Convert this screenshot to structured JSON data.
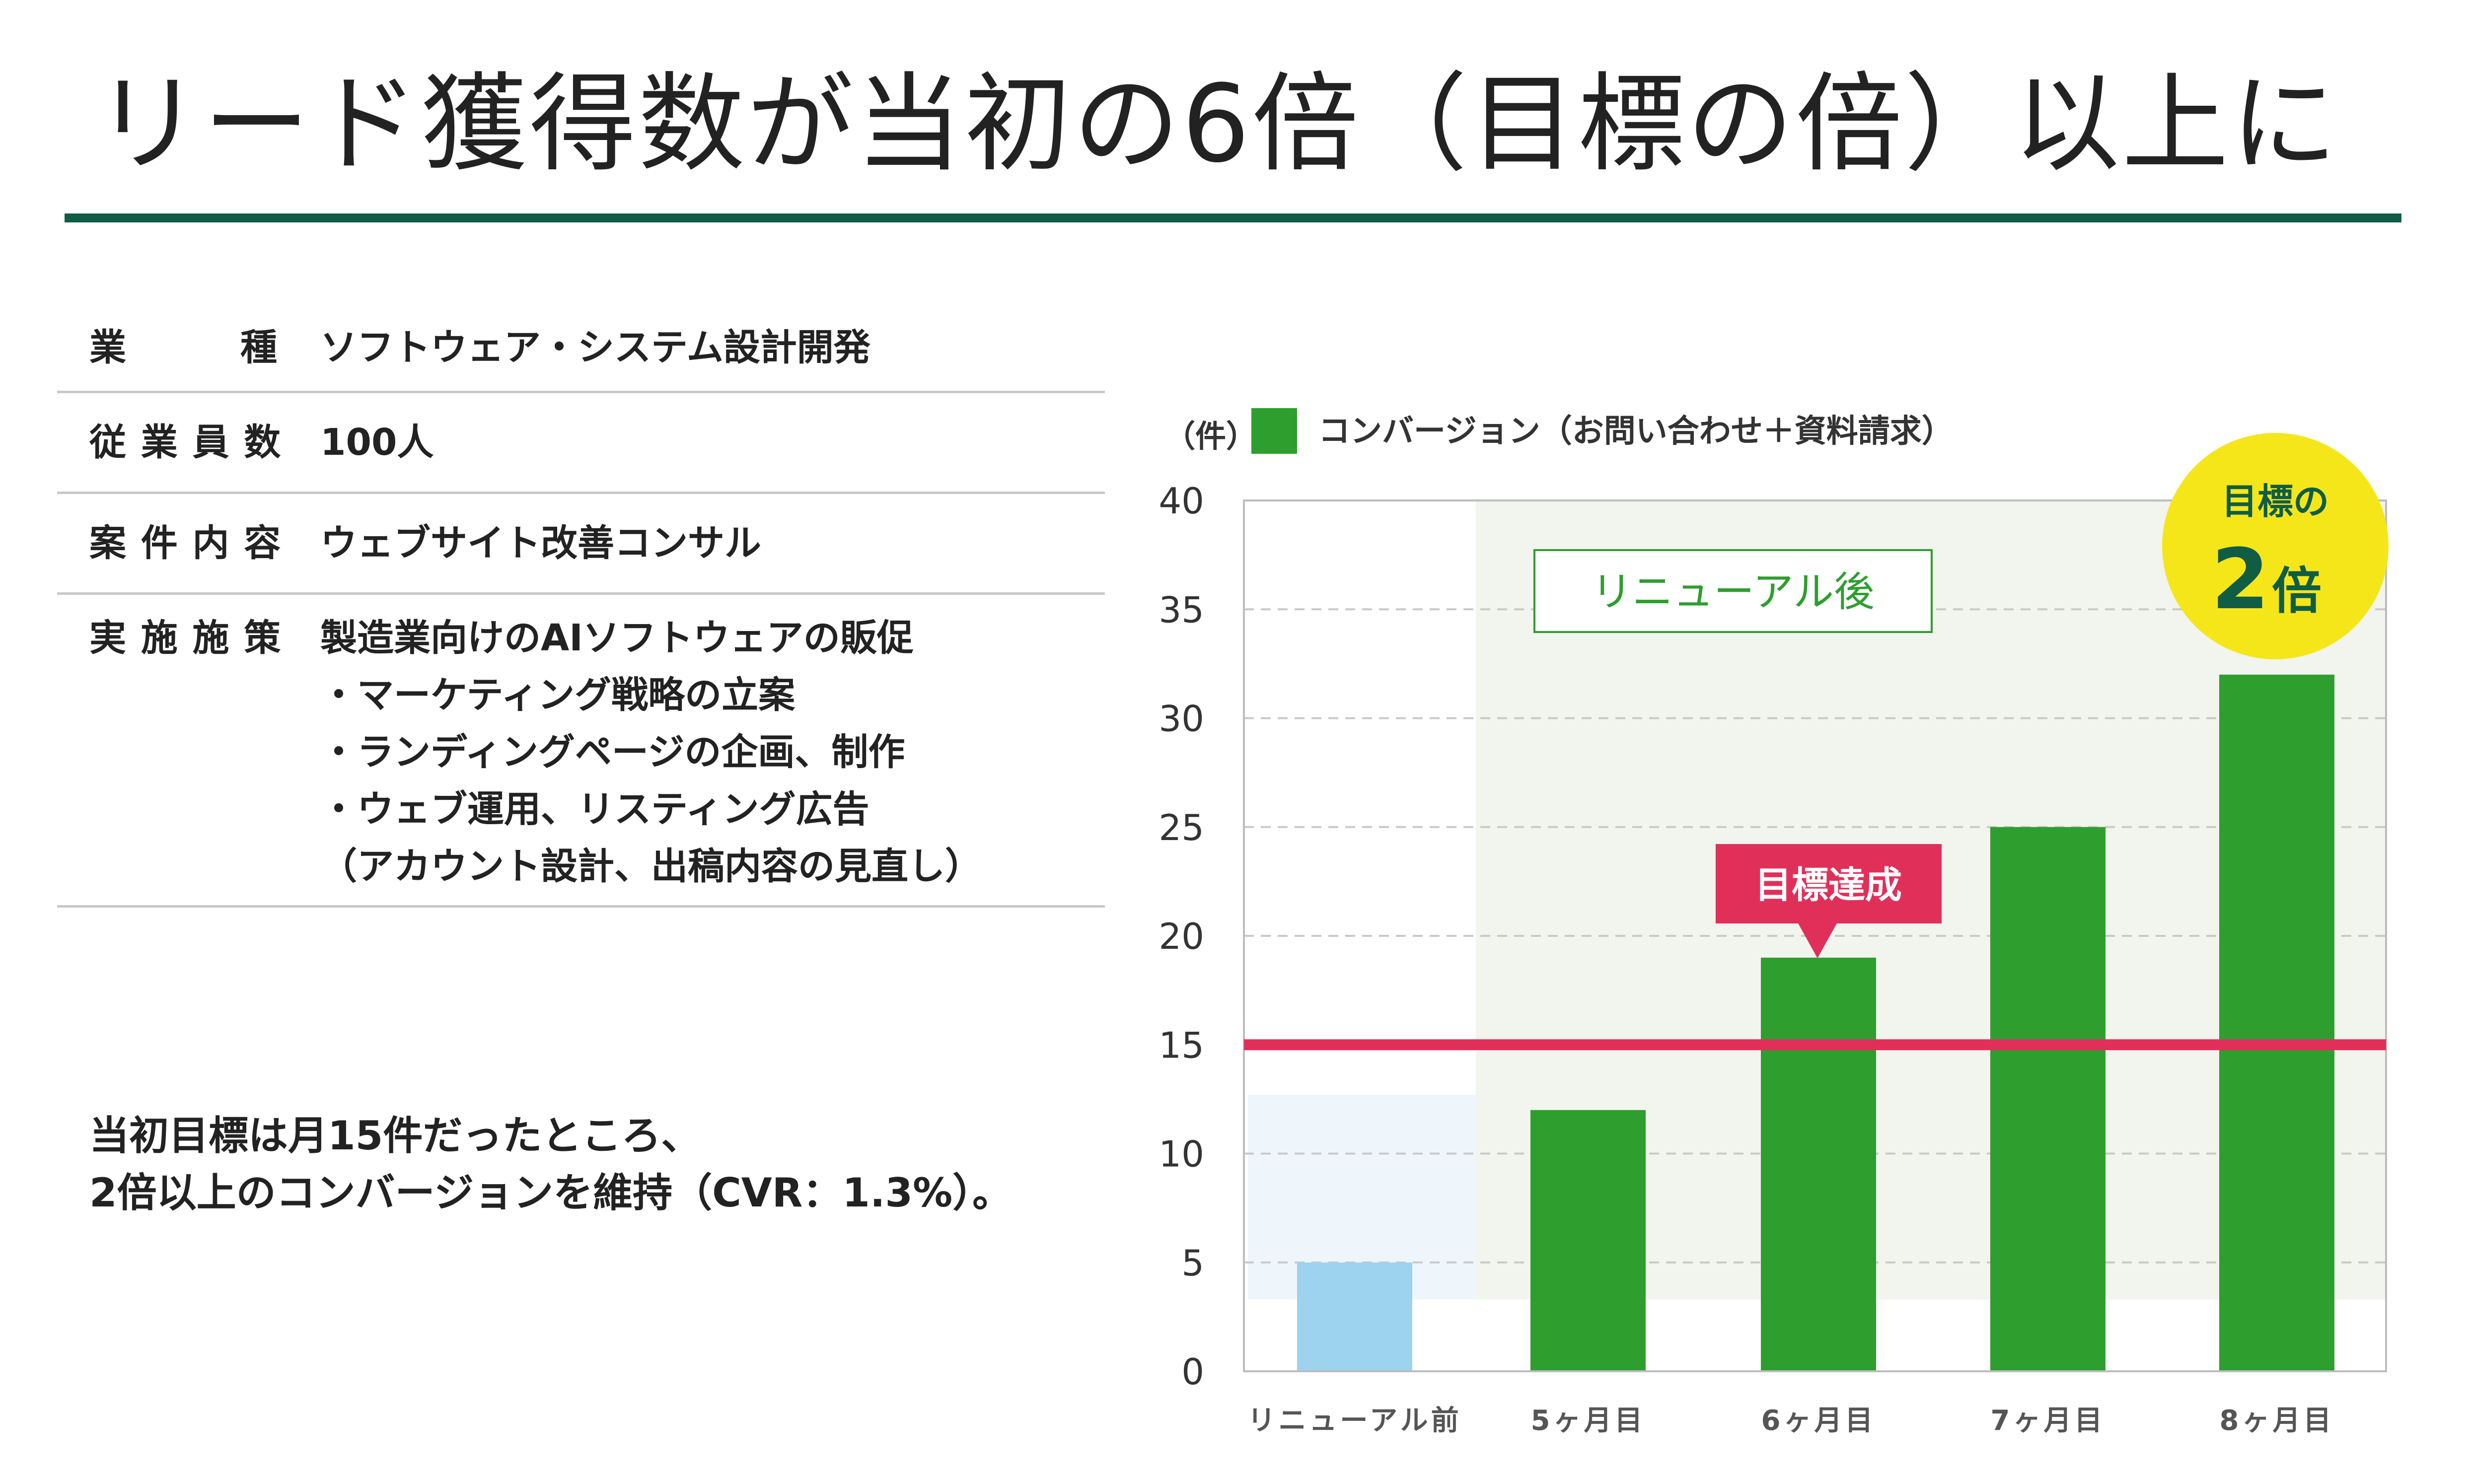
{
  "title": "リード獲得数が当初の6倍（目標の倍）以上に",
  "info": [
    {
      "label": "業　　　種",
      "lines": [
        "ソフトウェア・システム設計開発"
      ]
    },
    {
      "label": "従 業 員 数",
      "lines": [
        "100人"
      ]
    },
    {
      "label": "案 件 内 容",
      "lines": [
        "ウェブサイト改善コンサル"
      ]
    },
    {
      "label": "実 施 施 策",
      "lines": [
        "製造業向けのAIソフトウェアの販促",
        "・マーケティング戦略の立案",
        "・ランディングページの企画、制作",
        "・ウェブ運用、リスティング広告",
        "（アカウント設計、出稿内容の見直し）"
      ]
    }
  ],
  "summary": [
    "当初目標は月15件だったところ、",
    "2倍以上のコンバージョンを維持（CVR：1.3%）。"
  ],
  "chart_data": {
    "type": "bar",
    "categories": [
      "リニューアル前",
      "5ヶ月目",
      "6ヶ月目",
      "7ヶ月目",
      "8ヶ月目"
    ],
    "series": [
      {
        "name": "コンバージョン（お問い合わせ＋資料請求）",
        "values": [
          5,
          12,
          19,
          25,
          32
        ]
      }
    ],
    "ylabel": "（件）",
    "ylim": [
      0,
      40
    ],
    "yticks": [
      0,
      5,
      10,
      15,
      20,
      25,
      30,
      35,
      40
    ],
    "grid": true,
    "legend": "top-left",
    "target_line": 15,
    "annotations": {
      "renewal_label": "リニューアル後",
      "achieved_label": "目標達成",
      "goal_badge_top": "目標の",
      "goal_badge_num": "2",
      "goal_badge_unit": "倍"
    },
    "colors": {
      "before_bar": "#9dd3ee",
      "after_bar": "#2e9e2e",
      "target_line": "#e0305a",
      "callout": "#e0305a",
      "badge": "#f5e61a",
      "renewal_bg": "#f2f4ee",
      "before_bg": "#eef6fb",
      "accent": "#0f5d45"
    }
  }
}
